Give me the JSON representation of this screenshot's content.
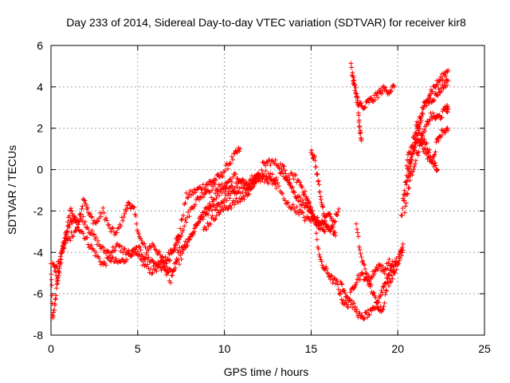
{
  "chart_data": {
    "type": "scatter",
    "title": "Day 233 of 2014, Sidereal Day-to-day VTEC variation (SDTVAR) for receiver kir8",
    "xlabel": "GPS time / hours",
    "ylabel": "SDTVAR / TECUs",
    "xlim": [
      0,
      25
    ],
    "ylim": [
      -8,
      6
    ],
    "xticks": [
      0,
      5,
      10,
      15,
      20,
      25
    ],
    "yticks": [
      -8,
      -6,
      -4,
      -2,
      0,
      2,
      4,
      6
    ],
    "xtick_labels": [
      "0",
      "5",
      "10",
      "15",
      "20",
      "25"
    ],
    "ytick_labels": [
      "-8",
      "-6",
      "-4",
      "-2",
      "0",
      "2",
      "4",
      "6"
    ],
    "grid": true,
    "marker": "plus",
    "series": [
      {
        "color": "#ff0000",
        "tracks": [
          [
            [
              0.0,
              -4.6
            ],
            [
              0.1,
              -7.3
            ],
            [
              0.25,
              -6.3
            ],
            [
              0.4,
              -5.2
            ],
            [
              0.6,
              -4.0
            ],
            [
              0.8,
              -3.3
            ],
            [
              1.0,
              -2.8
            ],
            [
              1.3,
              -2.3
            ],
            [
              1.6,
              -2.5
            ],
            [
              1.9,
              -1.3
            ],
            [
              2.2,
              -2.2
            ],
            [
              2.6,
              -2.6
            ],
            [
              3.0,
              -2.0
            ],
            [
              3.4,
              -2.9
            ],
            [
              3.8,
              -3.1
            ],
            [
              4.2,
              -2.2
            ],
            [
              4.5,
              -1.6
            ],
            [
              4.8,
              -2.0
            ],
            [
              5.1,
              -3.3
            ],
            [
              5.5,
              -3.9
            ],
            [
              5.9,
              -3.6
            ],
            [
              6.3,
              -4.2
            ],
            [
              6.7,
              -4.6
            ],
            [
              7.1,
              -3.7
            ],
            [
              7.4,
              -3.1
            ],
            [
              7.8,
              -1.3
            ],
            [
              8.2,
              -1.1
            ],
            [
              8.6,
              -0.9
            ],
            [
              9.0,
              -0.7
            ],
            [
              9.4,
              -0.5
            ],
            [
              9.8,
              -0.3
            ],
            [
              10.2,
              0.2
            ],
            [
              10.6,
              0.7
            ],
            [
              10.9,
              1.0
            ]
          ],
          [
            [
              0.2,
              -4.8
            ],
            [
              0.5,
              -4.5
            ],
            [
              0.8,
              -3.7
            ],
            [
              1.1,
              -1.9
            ],
            [
              1.4,
              -2.6
            ],
            [
              1.8,
              -3.0
            ],
            [
              2.2,
              -3.6
            ],
            [
              2.6,
              -4.1
            ],
            [
              3.0,
              -4.6
            ],
            [
              3.4,
              -4.3
            ],
            [
              3.8,
              -4.5
            ],
            [
              4.2,
              -4.4
            ],
            [
              4.6,
              -4.0
            ],
            [
              5.0,
              -4.2
            ],
            [
              5.4,
              -4.6
            ],
            [
              5.8,
              -4.9
            ],
            [
              6.2,
              -4.7
            ],
            [
              6.6,
              -4.3
            ],
            [
              7.0,
              -3.9
            ],
            [
              7.4,
              -3.3
            ],
            [
              7.8,
              -2.4
            ],
            [
              8.2,
              -1.7
            ],
            [
              8.6,
              -1.3
            ],
            [
              9.0,
              -1.0
            ],
            [
              9.4,
              -0.8
            ],
            [
              9.8,
              -0.9
            ],
            [
              10.2,
              -0.6
            ],
            [
              10.6,
              -0.3
            ],
            [
              11.0,
              -0.6
            ],
            [
              11.4,
              -0.9
            ],
            [
              11.8,
              -0.4
            ],
            [
              12.2,
              -0.1
            ],
            [
              12.6,
              -0.3
            ],
            [
              13.0,
              -0.5
            ]
          ],
          [
            [
              0.1,
              -4.4
            ],
            [
              0.4,
              -5.5
            ],
            [
              0.7,
              -3.5
            ],
            [
              1.0,
              -3.4
            ],
            [
              1.4,
              -2.9
            ],
            [
              1.8,
              -2.3
            ],
            [
              2.2,
              -2.9
            ],
            [
              2.6,
              -3.4
            ],
            [
              3.0,
              -3.9
            ],
            [
              3.4,
              -4.0
            ],
            [
              3.8,
              -3.7
            ],
            [
              4.2,
              -3.9
            ],
            [
              4.6,
              -4.1
            ],
            [
              5.0,
              -3.8
            ],
            [
              5.4,
              -4.2
            ],
            [
              5.8,
              -4.4
            ],
            [
              6.2,
              -4.6
            ],
            [
              6.6,
              -4.9
            ],
            [
              7.0,
              -5.0
            ],
            [
              7.4,
              -4.4
            ],
            [
              7.8,
              -3.7
            ],
            [
              8.2,
              -3.0
            ],
            [
              8.6,
              -2.4
            ],
            [
              9.0,
              -2.1
            ],
            [
              9.4,
              -1.8
            ],
            [
              9.8,
              -1.6
            ],
            [
              10.2,
              -1.3
            ],
            [
              10.6,
              -1.1
            ],
            [
              11.0,
              -1.0
            ],
            [
              11.4,
              -1.0
            ],
            [
              11.8,
              -0.5
            ],
            [
              12.2,
              -0.5
            ],
            [
              12.6,
              -0.5
            ],
            [
              13.0,
              -0.9
            ]
          ],
          [
            [
              6.4,
              -4.6
            ],
            [
              6.9,
              -5.3
            ],
            [
              7.3,
              -4.0
            ],
            [
              7.7,
              -3.6
            ],
            [
              8.1,
              -3.2
            ],
            [
              8.5,
              -2.5
            ],
            [
              8.9,
              -2.0
            ],
            [
              9.3,
              -1.4
            ],
            [
              9.7,
              -1.1
            ],
            [
              10.1,
              -0.9
            ],
            [
              10.5,
              -0.9
            ],
            [
              10.9,
              -0.6
            ],
            [
              11.3,
              -0.6
            ],
            [
              11.7,
              -0.3
            ],
            [
              12.0,
              -0.3
            ]
          ],
          [
            [
              8.8,
              -2.9
            ],
            [
              9.2,
              -2.5
            ],
            [
              9.6,
              -2.1
            ],
            [
              10.0,
              -1.9
            ],
            [
              10.4,
              -1.7
            ],
            [
              10.8,
              -1.5
            ],
            [
              11.2,
              -1.3
            ],
            [
              11.6,
              -0.8
            ],
            [
              11.9,
              -0.3
            ]
          ],
          [
            [
              12.2,
              0.2
            ],
            [
              12.6,
              0.4
            ],
            [
              13.0,
              0.3
            ],
            [
              13.4,
              0.1
            ],
            [
              13.7,
              -0.5
            ],
            [
              14.0,
              -1.1
            ],
            [
              14.3,
              -1.4
            ],
            [
              14.6,
              -1.7
            ],
            [
              14.9,
              -2.1
            ],
            [
              15.2,
              -2.3
            ],
            [
              15.5,
              -2.6
            ],
            [
              15.8,
              -3.0
            ]
          ],
          [
            [
              13.2,
              -0.2
            ],
            [
              13.6,
              -0.4
            ],
            [
              14.0,
              -0.3
            ],
            [
              14.4,
              -0.7
            ],
            [
              14.7,
              -1.3
            ],
            [
              14.9,
              -1.7
            ],
            [
              15.1,
              -2.2
            ],
            [
              15.4,
              -2.7
            ],
            [
              15.7,
              -2.6
            ],
            [
              16.0,
              -2.1
            ],
            [
              16.3,
              -2.6
            ],
            [
              16.6,
              -1.9
            ]
          ],
          [
            [
              13.0,
              -0.5
            ],
            [
              13.5,
              -1.6
            ],
            [
              13.9,
              -1.8
            ],
            [
              14.3,
              -2.0
            ],
            [
              14.7,
              -2.4
            ],
            [
              15.1,
              -2.4
            ],
            [
              15.4,
              -2.6
            ],
            [
              15.7,
              -2.9
            ]
          ],
          [
            [
              15.0,
              1.0
            ],
            [
              15.2,
              0.5
            ],
            [
              15.4,
              -0.5
            ],
            [
              15.6,
              -1.5
            ],
            [
              15.8,
              -2.6
            ],
            [
              16.0,
              -2.9
            ],
            [
              16.2,
              -2.8
            ],
            [
              16.4,
              -3.2
            ]
          ],
          [
            [
              15.3,
              -3.2
            ],
            [
              15.6,
              -4.6
            ],
            [
              15.9,
              -4.9
            ],
            [
              16.2,
              -5.3
            ],
            [
              16.5,
              -5.5
            ],
            [
              16.8,
              -6.3
            ],
            [
              17.1,
              -6.6
            ],
            [
              17.4,
              -5.7
            ],
            [
              17.7,
              -5.2
            ],
            [
              18.0,
              -5.1
            ],
            [
              18.3,
              -5.5
            ],
            [
              18.6,
              -5.0
            ],
            [
              18.9,
              -4.6
            ],
            [
              19.2,
              -4.9
            ],
            [
              19.5,
              -4.5
            ],
            [
              19.8,
              -4.9
            ]
          ],
          [
            [
              17.6,
              -2.7
            ],
            [
              17.9,
              -4.3
            ],
            [
              18.2,
              -5.0
            ],
            [
              18.5,
              -5.8
            ],
            [
              18.8,
              -6.5
            ],
            [
              19.1,
              -6.8
            ],
            [
              19.4,
              -5.6
            ],
            [
              19.7,
              -5.1
            ],
            [
              20.0,
              -4.5
            ],
            [
              20.3,
              -3.6
            ]
          ],
          [
            [
              16.7,
              -5.4
            ],
            [
              17.0,
              -6.0
            ],
            [
              17.3,
              -6.4
            ],
            [
              17.6,
              -6.8
            ],
            [
              17.9,
              -7.2
            ],
            [
              18.2,
              -7.0
            ],
            [
              18.5,
              -6.9
            ],
            [
              18.8,
              -6.5
            ],
            [
              19.1,
              -5.8
            ],
            [
              19.4,
              -5.2
            ],
            [
              19.7,
              -4.6
            ],
            [
              20.0,
              -4.4
            ],
            [
              20.3,
              -3.9
            ]
          ],
          [
            [
              17.3,
              5.0
            ],
            [
              17.5,
              4.0
            ],
            [
              17.7,
              3.1
            ],
            [
              17.8,
              2.0
            ],
            [
              17.9,
              1.4
            ]
          ],
          [
            [
              17.4,
              4.5
            ],
            [
              17.7,
              3.4
            ],
            [
              18.0,
              2.9
            ],
            [
              18.3,
              3.3
            ],
            [
              18.6,
              3.4
            ],
            [
              18.9,
              3.7
            ],
            [
              19.2,
              3.9
            ],
            [
              19.5,
              3.8
            ],
            [
              19.8,
              4.0
            ]
          ],
          [
            [
              20.2,
              -2.3
            ],
            [
              20.5,
              -0.8
            ],
            [
              20.8,
              0.5
            ],
            [
              21.1,
              1.6
            ],
            [
              21.4,
              2.6
            ],
            [
              21.7,
              3.5
            ],
            [
              22.0,
              3.9
            ],
            [
              22.3,
              4.2
            ],
            [
              22.6,
              4.5
            ],
            [
              22.9,
              4.8
            ]
          ],
          [
            [
              20.3,
              -1.3
            ],
            [
              20.6,
              0.1
            ],
            [
              20.9,
              1.1
            ],
            [
              21.2,
              2.3
            ],
            [
              21.5,
              3.1
            ],
            [
              21.8,
              3.3
            ],
            [
              22.1,
              3.5
            ],
            [
              22.4,
              3.8
            ],
            [
              22.7,
              4.1
            ],
            [
              22.9,
              4.3
            ]
          ],
          [
            [
              20.4,
              -2.0
            ],
            [
              20.7,
              -0.5
            ],
            [
              21.0,
              0.4
            ],
            [
              21.3,
              1.2
            ],
            [
              21.6,
              2.0
            ],
            [
              21.9,
              2.6
            ],
            [
              22.2,
              2.5
            ],
            [
              22.5,
              2.6
            ],
            [
              22.8,
              3.0
            ],
            [
              22.9,
              2.9
            ]
          ],
          [
            [
              20.5,
              0.3
            ],
            [
              20.8,
              1.2
            ],
            [
              21.1,
              2.2
            ],
            [
              21.4,
              1.6
            ],
            [
              21.7,
              1.1
            ],
            [
              22.0,
              0.4
            ],
            [
              22.3,
              1.5
            ],
            [
              22.6,
              1.9
            ],
            [
              22.9,
              1.9
            ]
          ],
          [
            [
              20.6,
              -0.4
            ],
            [
              20.9,
              0.8
            ],
            [
              21.2,
              1.5
            ],
            [
              21.5,
              1.0
            ],
            [
              21.8,
              0.5
            ],
            [
              22.1,
              0.3
            ],
            [
              22.3,
              0.0
            ]
          ]
        ]
      }
    ]
  }
}
